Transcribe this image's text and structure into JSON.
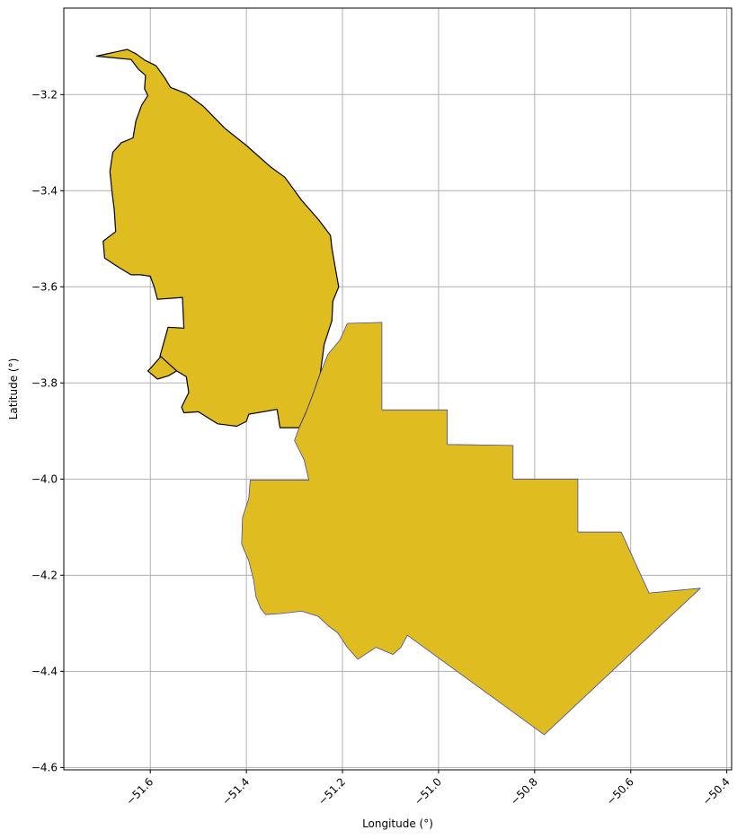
{
  "chart_data": {
    "type": "map",
    "xlabel": "Longitude (°)",
    "ylabel": "Latitude (°)",
    "xlim": [
      -51.78,
      -50.39
    ],
    "ylim": [
      -4.605,
      -3.02
    ],
    "xticks": [
      -51.6,
      -51.4,
      -51.2,
      -51.0,
      -50.8,
      -50.6,
      -50.4
    ],
    "xtick_labels": [
      "−51.6",
      "−51.4",
      "−51.2",
      "−51.0",
      "−50.8",
      "−50.6",
      "−50.4"
    ],
    "yticks": [
      -3.2,
      -3.4,
      -3.6,
      -3.8,
      -4.0,
      -4.2,
      -4.4,
      -4.6
    ],
    "ytick_labels": [
      "−3.2",
      "−3.4",
      "−3.6",
      "−3.8",
      "−4.0",
      "−4.2",
      "−4.4",
      "−4.6"
    ],
    "grid": true,
    "colors": {
      "fill": "#dfbd21",
      "north_edge": "#000000",
      "south_edge": "#4b4b9b",
      "grid": "#b0b0b0"
    },
    "regions": [
      {
        "id": "north-region",
        "edge": "north_edge",
        "coords": [
          [
            -51.712,
            -3.12
          ],
          [
            -51.648,
            -3.106
          ],
          [
            -51.63,
            -3.115
          ],
          [
            -51.612,
            -3.128
          ],
          [
            -51.588,
            -3.14
          ],
          [
            -51.57,
            -3.165
          ],
          [
            -51.558,
            -3.185
          ],
          [
            -51.525,
            -3.198
          ],
          [
            -51.49,
            -3.224
          ],
          [
            -51.445,
            -3.27
          ],
          [
            -51.401,
            -3.305
          ],
          [
            -51.35,
            -3.35
          ],
          [
            -51.32,
            -3.372
          ],
          [
            -51.285,
            -3.42
          ],
          [
            -51.25,
            -3.46
          ],
          [
            -51.225,
            -3.493
          ],
          [
            -51.222,
            -3.52
          ],
          [
            -51.215,
            -3.56
          ],
          [
            -51.208,
            -3.6
          ],
          [
            -51.22,
            -3.63
          ],
          [
            -51.222,
            -3.67
          ],
          [
            -51.238,
            -3.72
          ],
          [
            -51.246,
            -3.78
          ],
          [
            -51.26,
            -3.82
          ],
          [
            -51.275,
            -3.86
          ],
          [
            -51.29,
            -3.893
          ],
          [
            -51.33,
            -3.893
          ],
          [
            -51.336,
            -3.855
          ],
          [
            -51.395,
            -3.865
          ],
          [
            -51.4,
            -3.88
          ],
          [
            -51.42,
            -3.89
          ],
          [
            -51.46,
            -3.885
          ],
          [
            -51.5,
            -3.86
          ],
          [
            -51.53,
            -3.862
          ],
          [
            -51.535,
            -3.85
          ],
          [
            -51.52,
            -3.82
          ],
          [
            -51.525,
            -3.787
          ],
          [
            -51.545,
            -3.775
          ],
          [
            -51.58,
            -3.745
          ],
          [
            -51.563,
            -3.684
          ],
          [
            -51.53,
            -3.686
          ],
          [
            -51.533,
            -3.622
          ],
          [
            -51.585,
            -3.626
          ],
          [
            -51.592,
            -3.6
          ],
          [
            -51.6,
            -3.578
          ],
          [
            -51.62,
            -3.575
          ],
          [
            -51.64,
            -3.575
          ],
          [
            -51.665,
            -3.56
          ],
          [
            -51.695,
            -3.54
          ],
          [
            -51.698,
            -3.505
          ],
          [
            -51.672,
            -3.485
          ],
          [
            -51.675,
            -3.44
          ],
          [
            -51.68,
            -3.4
          ],
          [
            -51.684,
            -3.36
          ],
          [
            -51.678,
            -3.32
          ],
          [
            -51.66,
            -3.3
          ],
          [
            -51.636,
            -3.29
          ],
          [
            -51.63,
            -3.255
          ],
          [
            -51.618,
            -3.222
          ],
          [
            -51.605,
            -3.202
          ],
          [
            -51.612,
            -3.188
          ],
          [
            -51.61,
            -3.16
          ],
          [
            -51.625,
            -3.147
          ],
          [
            -51.64,
            -3.127
          ],
          [
            -51.68,
            -3.123
          ],
          [
            -51.712,
            -3.12
          ]
        ]
      },
      {
        "id": "north-west-lobe",
        "edge": "north_edge",
        "coords": [
          [
            -51.6,
            -3.77
          ],
          [
            -51.578,
            -3.745
          ],
          [
            -51.545,
            -3.775
          ],
          [
            -51.562,
            -3.785
          ],
          [
            -51.585,
            -3.792
          ],
          [
            -51.605,
            -3.775
          ],
          [
            -51.6,
            -3.77
          ]
        ]
      },
      {
        "id": "south-region",
        "edge": "south_edge",
        "coords": [
          [
            -51.19,
            -3.676
          ],
          [
            -51.118,
            -3.674
          ],
          [
            -51.118,
            -3.856
          ],
          [
            -50.982,
            -3.856
          ],
          [
            -50.982,
            -3.928
          ],
          [
            -50.845,
            -3.93
          ],
          [
            -50.845,
            -4.0
          ],
          [
            -50.71,
            -4.0
          ],
          [
            -50.71,
            -4.11
          ],
          [
            -50.62,
            -4.11
          ],
          [
            -50.562,
            -4.237
          ],
          [
            -50.455,
            -4.227
          ],
          [
            -50.78,
            -4.532
          ],
          [
            -51.065,
            -4.325
          ],
          [
            -51.078,
            -4.35
          ],
          [
            -51.095,
            -4.365
          ],
          [
            -51.13,
            -4.35
          ],
          [
            -51.168,
            -4.375
          ],
          [
            -51.19,
            -4.35
          ],
          [
            -51.21,
            -4.32
          ],
          [
            -51.23,
            -4.305
          ],
          [
            -51.25,
            -4.286
          ],
          [
            -51.285,
            -4.275
          ],
          [
            -51.33,
            -4.28
          ],
          [
            -51.36,
            -4.282
          ],
          [
            -51.37,
            -4.27
          ],
          [
            -51.38,
            -4.245
          ],
          [
            -51.385,
            -4.21
          ],
          [
            -51.395,
            -4.17
          ],
          [
            -51.41,
            -4.135
          ],
          [
            -51.408,
            -4.08
          ],
          [
            -51.395,
            -4.04
          ],
          [
            -51.392,
            -4.002
          ],
          [
            -51.27,
            -4.002
          ],
          [
            -51.28,
            -3.96
          ],
          [
            -51.3,
            -3.92
          ],
          [
            -51.29,
            -3.893
          ],
          [
            -51.275,
            -3.86
          ],
          [
            -51.26,
            -3.82
          ],
          [
            -51.246,
            -3.78
          ],
          [
            -51.23,
            -3.74
          ],
          [
            -51.205,
            -3.71
          ],
          [
            -51.19,
            -3.676
          ]
        ]
      }
    ]
  }
}
